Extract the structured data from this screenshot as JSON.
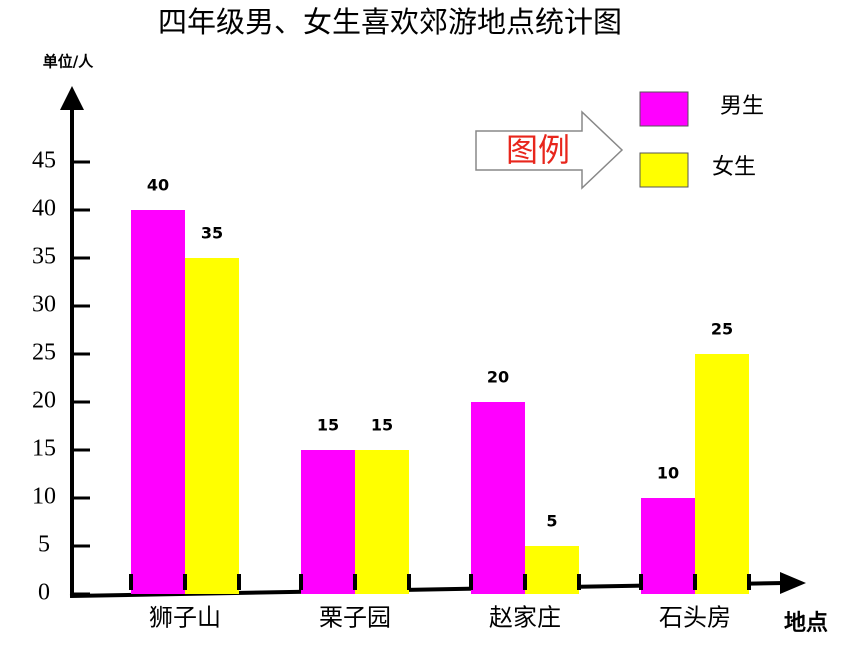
{
  "chart_data": {
    "type": "bar",
    "title": "四年级男、女生喜欢郊游地点统计图",
    "y_axis_label": "单位/人",
    "x_axis_label": "地点",
    "legend_title": "图例",
    "categories": [
      "狮子山",
      "栗子园",
      "赵家庄",
      "石头房"
    ],
    "series": [
      {
        "name": "男生",
        "color": "#ff00ff",
        "values": [
          40,
          15,
          20,
          10
        ]
      },
      {
        "name": "女生",
        "color": "#ffff00",
        "values": [
          35,
          15,
          5,
          25
        ]
      }
    ],
    "ylim": [
      0,
      50
    ],
    "yticks": [
      0,
      5,
      10,
      15,
      20,
      25,
      30,
      35,
      40,
      45
    ]
  }
}
